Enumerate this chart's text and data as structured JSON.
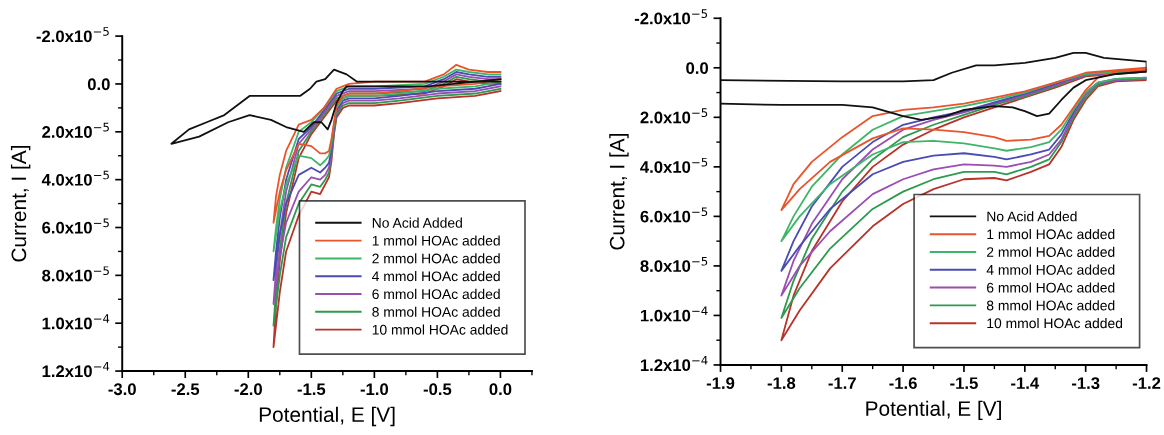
{
  "chart_data": [
    {
      "type": "line",
      "xlabel": "Potential, E [V]",
      "ylabel": "Current, I [A]",
      "xlim": [
        -3.0,
        0.25
      ],
      "ylim": [
        0.00012,
        -2e-05
      ],
      "xticks": [
        {
          "value": -3,
          "label": "-3.0"
        },
        -2.5,
        {
          "value": -2,
          "label": "-2.0"
        },
        -1.5,
        {
          "value": -1,
          "label": "-1.0"
        },
        -0.5,
        {
          "value": 0,
          "label": "0.0"
        }
      ],
      "yticks": [
        {
          "value": -2e-05,
          "label": "-2.0x10$^{−5}$"
        },
        {
          "value": 0,
          "label": "0.0"
        },
        {
          "value": 2e-05,
          "label": "2.0x10$^{−5}$"
        },
        {
          "value": 4e-05,
          "label": "4.0x10$^{−5}$"
        },
        {
          "value": 6e-05,
          "label": "6.0x10$^{−5}$"
        },
        {
          "value": 8e-05,
          "label": "8.0x10$^{−5}$"
        },
        {
          "value": 0.0001,
          "label": "1.0x10$^{−4}$"
        },
        {
          "value": 0.00012,
          "label": "1.2x10$^{−4}$"
        }
      ],
      "grid": false,
      "legend": "bottom right",
      "marker": "none",
      "line_style": "solid",
      "series": [
        {
          "name": "No Acid Added",
          "color": "#111111",
          "x": [
            0,
            -0.57,
            -1.14,
            -1.22,
            -1.25,
            -1.3,
            -1.34,
            -1.37,
            -1.42,
            -1.48,
            -1.56,
            -1.7,
            -1.82,
            -1.99,
            -2.16,
            -2.39,
            -2.61,
            -2.47,
            -2.33,
            -2.19,
            -1.99,
            -1.82,
            -1.59,
            -1.51,
            -1.46,
            -1.39,
            -1.32,
            -1.22,
            -1.14,
            -0.57,
            0
          ],
          "values": [
            -2e-06,
            1e-06,
            1e-06,
            1e-06,
            3e-06,
            8e-06,
            1.5e-05,
            1.9e-05,
            1.6e-05,
            1.6e-05,
            2e-05,
            1.8e-05,
            1.5e-05,
            1.3e-05,
            1.6e-05,
            2.2e-05,
            2.5e-05,
            1.9e-05,
            1.6e-05,
            1.3e-05,
            5e-06,
            5e-06,
            5e-06,
            2e-06,
            -1e-06,
            -2e-06,
            -6e-06,
            -4e-06,
            -1e-06,
            -1e-06,
            -1e-06
          ]
        },
        {
          "name": "1 mmol HOAc added",
          "color": "#e8552c",
          "x": [
            0,
            -0.2,
            -0.5,
            -0.8,
            -1.0,
            -1.2,
            -1.25,
            -1.3,
            -1.32,
            -1.34,
            -1.36,
            -1.39,
            -1.43,
            -1.5,
            -1.6,
            -1.7,
            -1.75,
            -1.8,
            -1.78,
            -1.75,
            -1.7,
            -1.6,
            -1.5,
            -1.4,
            -1.3,
            -1.2,
            -1.0,
            -0.6,
            -0.45,
            -0.35,
            -0.25,
            -0.1,
            0
          ],
          "values": [
            -2e-06,
            0,
            1e-06,
            3e-06,
            4e-06,
            4e-06,
            5e-06,
            9e-06,
            1.6e-05,
            2.3e-05,
            2.8e-05,
            2.9e-05,
            2.9e-05,
            2.6e-05,
            2.5e-05,
            3.6e-05,
            4.5e-05,
            5.8e-05,
            4.7e-05,
            3.8e-05,
            2.8e-05,
            1.7e-05,
            1.5e-05,
            1e-05,
            2e-06,
            0,
            -1e-06,
            -1e-06,
            -4e-06,
            -8e-06,
            -6e-06,
            -5e-06,
            -5e-06
          ]
        },
        {
          "name": "2 mmol HOAc added",
          "color": "#3fb56a",
          "x": [
            0,
            -0.2,
            -0.5,
            -0.8,
            -1.0,
            -1.2,
            -1.25,
            -1.3,
            -1.32,
            -1.34,
            -1.36,
            -1.39,
            -1.43,
            -1.5,
            -1.6,
            -1.7,
            -1.75,
            -1.8,
            -1.78,
            -1.75,
            -1.7,
            -1.6,
            -1.5,
            -1.4,
            -1.3,
            -1.2,
            -1.0,
            -0.6,
            -0.45,
            -0.35,
            -0.25,
            -0.1,
            0
          ],
          "values": [
            -1e-06,
            1e-06,
            2e-06,
            4e-06,
            5e-06,
            5e-06,
            6e-06,
            1e-05,
            1.7e-05,
            2.5e-05,
            3e-05,
            3.2e-05,
            3.4e-05,
            3.1e-05,
            3e-05,
            4.2e-05,
            5.3e-05,
            7e-05,
            6e-05,
            4.8e-05,
            3.5e-05,
            2e-05,
            1.6e-05,
            1e-05,
            3e-06,
            1e-06,
            1e-06,
            0,
            -3e-06,
            -6e-06,
            -5e-06,
            -4e-06,
            -4e-06
          ]
        },
        {
          "name": "4 mmol HOAc added",
          "color": "#4a4cb4",
          "x": [
            0,
            -0.2,
            -0.5,
            -0.8,
            -1.0,
            -1.2,
            -1.25,
            -1.3,
            -1.32,
            -1.34,
            -1.36,
            -1.39,
            -1.43,
            -1.5,
            -1.6,
            -1.7,
            -1.75,
            -1.8,
            -1.78,
            -1.75,
            -1.7,
            -1.6,
            -1.5,
            -1.4,
            -1.3,
            -1.2,
            -1.0,
            -0.6,
            -0.45,
            -0.35,
            -0.25,
            -0.1,
            0
          ],
          "values": [
            0,
            2e-06,
            3e-06,
            5e-06,
            6e-06,
            6e-06,
            7e-06,
            1.1e-05,
            1.8e-05,
            2.7e-05,
            3.3e-05,
            3.5e-05,
            3.7e-05,
            3.5e-05,
            3.8e-05,
            5e-05,
            6.3e-05,
            8.2e-05,
            7e-05,
            5.6e-05,
            4e-05,
            2.3e-05,
            1.8e-05,
            1.1e-05,
            4e-06,
            2e-06,
            2e-06,
            1e-06,
            -2e-06,
            -5e-06,
            -4e-06,
            -3e-06,
            -3e-06
          ]
        },
        {
          "name": "6 mmol HOAc added",
          "color": "#9a4db3",
          "x": [
            0,
            -0.2,
            -0.5,
            -0.8,
            -1.0,
            -1.2,
            -1.25,
            -1.3,
            -1.32,
            -1.34,
            -1.36,
            -1.39,
            -1.43,
            -1.5,
            -1.6,
            -1.7,
            -1.75,
            -1.8,
            -1.78,
            -1.75,
            -1.7,
            -1.6,
            -1.5,
            -1.4,
            -1.3,
            -1.2,
            -1.0,
            -0.6,
            -0.45,
            -0.35,
            -0.25,
            -0.1,
            0
          ],
          "values": [
            1e-06,
            3e-06,
            4e-06,
            6e-06,
            7e-06,
            7e-06,
            8e-06,
            1.2e-05,
            1.9e-05,
            2.9e-05,
            3.5e-05,
            3.8e-05,
            4e-05,
            3.9e-05,
            4.5e-05,
            5.8e-05,
            7.2e-05,
            9.2e-05,
            7.8e-05,
            6.3e-05,
            4.5e-05,
            2.5e-05,
            1.9e-05,
            1.2e-05,
            5e-06,
            3e-06,
            3e-06,
            2e-06,
            -1e-06,
            -4e-06,
            -3e-06,
            -2e-06,
            -2e-06
          ]
        },
        {
          "name": "8 mmol HOAc added",
          "color": "#2e9a4e",
          "x": [
            0,
            -0.2,
            -0.5,
            -0.8,
            -1.0,
            -1.2,
            -1.25,
            -1.3,
            -1.32,
            -1.34,
            -1.36,
            -1.39,
            -1.43,
            -1.5,
            -1.6,
            -1.7,
            -1.75,
            -1.8,
            -1.78,
            -1.75,
            -1.7,
            -1.6,
            -1.5,
            -1.4,
            -1.3,
            -1.2,
            -1.0,
            -0.6,
            -0.45,
            -0.35,
            -0.25,
            -0.1,
            0
          ],
          "values": [
            2e-06,
            4e-06,
            5e-06,
            7e-06,
            8e-06,
            8e-06,
            9e-06,
            1.3e-05,
            2e-05,
            3e-05,
            3.7e-05,
            4e-05,
            4.3e-05,
            4.2e-05,
            5e-05,
            6.4e-05,
            8e-05,
            0.000101,
            8.6e-05,
            6.9e-05,
            5e-05,
            2.8e-05,
            2e-05,
            1.3e-05,
            6e-06,
            4e-06,
            4e-06,
            3e-06,
            0,
            -3e-06,
            -2e-06,
            -1e-06,
            -1e-06
          ]
        },
        {
          "name": "10 mmol HOAc added",
          "color": "#b8332a",
          "x": [
            0,
            -0.2,
            -0.5,
            -0.8,
            -1.0,
            -1.2,
            -1.25,
            -1.3,
            -1.32,
            -1.34,
            -1.36,
            -1.39,
            -1.43,
            -1.5,
            -1.6,
            -1.7,
            -1.75,
            -1.8,
            -1.78,
            -1.75,
            -1.7,
            -1.6,
            -1.5,
            -1.4,
            -1.3,
            -1.2,
            -1.0,
            -0.6,
            -0.45,
            -0.35,
            -0.25,
            -0.1,
            0
          ],
          "values": [
            3e-06,
            5e-06,
            6e-06,
            8e-06,
            9e-06,
            9e-06,
            1e-05,
            1.4e-05,
            2.1e-05,
            3.2e-05,
            3.9e-05,
            4.2e-05,
            4.6e-05,
            4.5e-05,
            5.5e-05,
            7e-05,
            8.7e-05,
            0.00011,
            9.2e-05,
            7.4e-05,
            5.4e-05,
            3.1e-05,
            2.1e-05,
            1.4e-05,
            7e-06,
            5e-06,
            5e-06,
            4e-06,
            1e-06,
            -2e-06,
            -1e-06,
            0,
            0
          ]
        }
      ]
    },
    {
      "type": "line",
      "xlabel": "Potential, E [V]",
      "ylabel": "Current, I [A]",
      "xlim": [
        -1.9,
        -1.2
      ],
      "ylim": [
        0.00012,
        -2e-05
      ],
      "xticks": [
        -1.9,
        -1.8,
        -1.7,
        -1.6,
        -1.5,
        -1.4,
        -1.3,
        -1.2
      ],
      "yticks": [
        {
          "value": -2e-05,
          "label": "-2.0x10$^{−5}$"
        },
        {
          "value": 0,
          "label": "0.0"
        },
        {
          "value": 2e-05,
          "label": "2.0x10$^{−5}$"
        },
        {
          "value": 4e-05,
          "label": "4.0x10$^{−5}$"
        },
        {
          "value": 6e-05,
          "label": "6.0x10$^{−5}$"
        },
        {
          "value": 8e-05,
          "label": "8.0x10$^{−5}$"
        },
        {
          "value": 0.0001,
          "label": "1.0x10$^{−4}$"
        },
        {
          "value": 0.00012,
          "label": "1.2x10$^{−4}$"
        }
      ],
      "grid": false,
      "legend": "bottom right",
      "marker": "none",
      "line_style": "solid",
      "series": [
        {
          "name": "No Acid Added",
          "color": "#111111",
          "x": [
            -1.9,
            -1.7,
            -1.6,
            -1.55,
            -1.52,
            -1.48,
            -1.45,
            -1.4,
            -1.35,
            -1.32,
            -1.3,
            -1.27,
            -1.2,
            -1.2,
            -1.25,
            -1.3,
            -1.32,
            -1.34,
            -1.36,
            -1.38,
            -1.4,
            -1.42,
            -1.45,
            -1.5,
            -1.53,
            -1.57,
            -1.6,
            -1.65,
            -1.7,
            -1.8,
            -1.9
          ],
          "values": [
            5e-06,
            5.5e-06,
            5.5e-06,
            5e-06,
            2e-06,
            -1e-06,
            -1e-06,
            -2e-06,
            -4e-06,
            -6e-06,
            -6e-06,
            -4e-06,
            -2.5e-06,
            1.5e-06,
            2.5e-06,
            5e-06,
            8e-06,
            1.3e-05,
            1.85e-05,
            1.95e-05,
            1.75e-05,
            1.6e-05,
            1.55e-05,
            1.7e-05,
            1.95e-05,
            2.1e-05,
            1.95e-05,
            1.6e-05,
            1.5e-05,
            1.5e-05,
            1.45e-05
          ]
        },
        {
          "name": "1 mmol HOAc added",
          "color": "#e8552c",
          "x": [
            -1.2,
            -1.25,
            -1.28,
            -1.3,
            -1.32,
            -1.34,
            -1.36,
            -1.39,
            -1.43,
            -1.45,
            -1.5,
            -1.55,
            -1.6,
            -1.65,
            -1.72,
            -1.77,
            -1.8,
            -1.78,
            -1.75,
            -1.7,
            -1.65,
            -1.6,
            -1.55,
            -1.5,
            -1.45,
            -1.4,
            -1.35,
            -1.3,
            -1.2
          ],
          "values": [
            1e-06,
            1.5e-06,
            4e-06,
            9e-06,
            1.6e-05,
            2.3e-05,
            2.75e-05,
            2.9e-05,
            2.95e-05,
            2.8e-05,
            2.6e-05,
            2.5e-05,
            2.45e-05,
            2.85e-05,
            3.8e-05,
            4.9e-05,
            5.75e-05,
            4.7e-05,
            3.8e-05,
            2.8e-05,
            1.95e-05,
            1.7e-05,
            1.6e-05,
            1.45e-05,
            1.2e-05,
            9.5e-06,
            6e-06,
            2e-06,
            0
          ]
        },
        {
          "name": "2 mmol HOAc added",
          "color": "#3fb56a",
          "x": [
            -1.2,
            -1.25,
            -1.28,
            -1.3,
            -1.32,
            -1.34,
            -1.36,
            -1.39,
            -1.43,
            -1.45,
            -1.5,
            -1.55,
            -1.6,
            -1.65,
            -1.72,
            -1.77,
            -1.8,
            -1.78,
            -1.75,
            -1.7,
            -1.65,
            -1.6,
            -1.55,
            -1.5,
            -1.45,
            -1.4,
            -1.35,
            -1.3,
            -1.2
          ],
          "values": [
            4e-06,
            4.5e-06,
            6e-06,
            1e-05,
            1.7e-05,
            2.5e-05,
            3e-05,
            3.2e-05,
            3.35e-05,
            3.25e-05,
            3.05e-05,
            2.95e-05,
            3e-05,
            3.5e-05,
            4.7e-05,
            6e-05,
            7e-05,
            6e-05,
            4.8e-05,
            3.5e-05,
            2.5e-05,
            1.95e-05,
            1.75e-05,
            1.55e-05,
            1.3e-05,
            1e-05,
            6e-06,
            2.5e-06,
            1e-06
          ]
        },
        {
          "name": "4 mmol HOAc added",
          "color": "#4a4cb4",
          "x": [
            -1.2,
            -1.25,
            -1.28,
            -1.3,
            -1.32,
            -1.34,
            -1.36,
            -1.39,
            -1.43,
            -1.45,
            -1.5,
            -1.55,
            -1.6,
            -1.65,
            -1.72,
            -1.77,
            -1.8,
            -1.78,
            -1.75,
            -1.7,
            -1.65,
            -1.6,
            -1.55,
            -1.5,
            -1.45,
            -1.4,
            -1.35,
            -1.3,
            -1.2
          ],
          "values": [
            4e-06,
            4.5e-06,
            6e-06,
            1e-05,
            1.8e-05,
            2.7e-05,
            3.3e-05,
            3.5e-05,
            3.7e-05,
            3.6e-05,
            3.45e-05,
            3.55e-05,
            3.8e-05,
            4.3e-05,
            5.7e-05,
            7.2e-05,
            8.2e-05,
            7e-05,
            5.6e-05,
            4e-05,
            3e-05,
            2.3e-05,
            2e-05,
            1.75e-05,
            1.4e-05,
            1.05e-05,
            6.5e-06,
            2.5e-06,
            1e-06
          ]
        },
        {
          "name": "6 mmol HOAc added",
          "color": "#9a4db3",
          "x": [
            -1.2,
            -1.25,
            -1.28,
            -1.3,
            -1.32,
            -1.34,
            -1.36,
            -1.39,
            -1.43,
            -1.45,
            -1.5,
            -1.55,
            -1.6,
            -1.65,
            -1.72,
            -1.77,
            -1.8,
            -1.78,
            -1.75,
            -1.7,
            -1.65,
            -1.6,
            -1.55,
            -1.5,
            -1.45,
            -1.4,
            -1.35,
            -1.3,
            -1.2
          ],
          "values": [
            4.5e-06,
            5e-06,
            6.5e-06,
            1.1e-05,
            1.9e-05,
            2.9e-05,
            3.5e-05,
            3.8e-05,
            4e-05,
            3.95e-05,
            3.9e-05,
            4.1e-05,
            4.5e-05,
            5.1e-05,
            6.6e-05,
            8e-05,
            9.2e-05,
            7.8e-05,
            6.3e-05,
            4.5e-05,
            3.3e-05,
            2.5e-05,
            2.1e-05,
            1.8e-05,
            1.45e-05,
            1.1e-05,
            7e-06,
            3e-06,
            1.5e-06
          ]
        },
        {
          "name": "8 mmol HOAc added",
          "color": "#2e9a4e",
          "x": [
            -1.2,
            -1.25,
            -1.28,
            -1.3,
            -1.32,
            -1.34,
            -1.36,
            -1.39,
            -1.43,
            -1.45,
            -1.5,
            -1.55,
            -1.6,
            -1.65,
            -1.72,
            -1.77,
            -1.8,
            -1.78,
            -1.75,
            -1.7,
            -1.65,
            -1.6,
            -1.55,
            -1.5,
            -1.45,
            -1.4,
            -1.35,
            -1.3,
            -1.2
          ],
          "values": [
            4.5e-06,
            5e-06,
            7e-06,
            1.2e-05,
            2e-05,
            3e-05,
            3.7e-05,
            4e-05,
            4.3e-05,
            4.2e-05,
            4.2e-05,
            4.5e-05,
            5e-05,
            5.7e-05,
            7.3e-05,
            8.9e-05,
            0.000101,
            8.6e-05,
            6.9e-05,
            5e-05,
            3.7e-05,
            2.8e-05,
            2.3e-05,
            1.9e-05,
            1.5e-05,
            1.15e-05,
            7.5e-06,
            3e-06,
            1.5e-06
          ]
        },
        {
          "name": "10 mmol HOAc added",
          "color": "#b8332a",
          "x": [
            -1.2,
            -1.25,
            -1.28,
            -1.3,
            -1.32,
            -1.34,
            -1.36,
            -1.39,
            -1.43,
            -1.45,
            -1.5,
            -1.55,
            -1.6,
            -1.65,
            -1.72,
            -1.77,
            -1.8,
            -1.78,
            -1.75,
            -1.7,
            -1.65,
            -1.6,
            -1.55,
            -1.5,
            -1.45,
            -1.4,
            -1.35,
            -1.3,
            -1.2
          ],
          "values": [
            5e-06,
            5.5e-06,
            7.5e-06,
            1.3e-05,
            2.1e-05,
            3.2e-05,
            3.9e-05,
            4.2e-05,
            4.55e-05,
            4.45e-05,
            4.5e-05,
            4.9e-05,
            5.5e-05,
            6.4e-05,
            8.1e-05,
            9.8e-05,
            0.00011,
            9.2e-05,
            7.4e-05,
            5.4e-05,
            4e-05,
            3.1e-05,
            2.5e-05,
            2e-05,
            1.6e-05,
            1.2e-05,
            8e-06,
            3.5e-06,
            1.5e-06
          ]
        }
      ]
    }
  ]
}
